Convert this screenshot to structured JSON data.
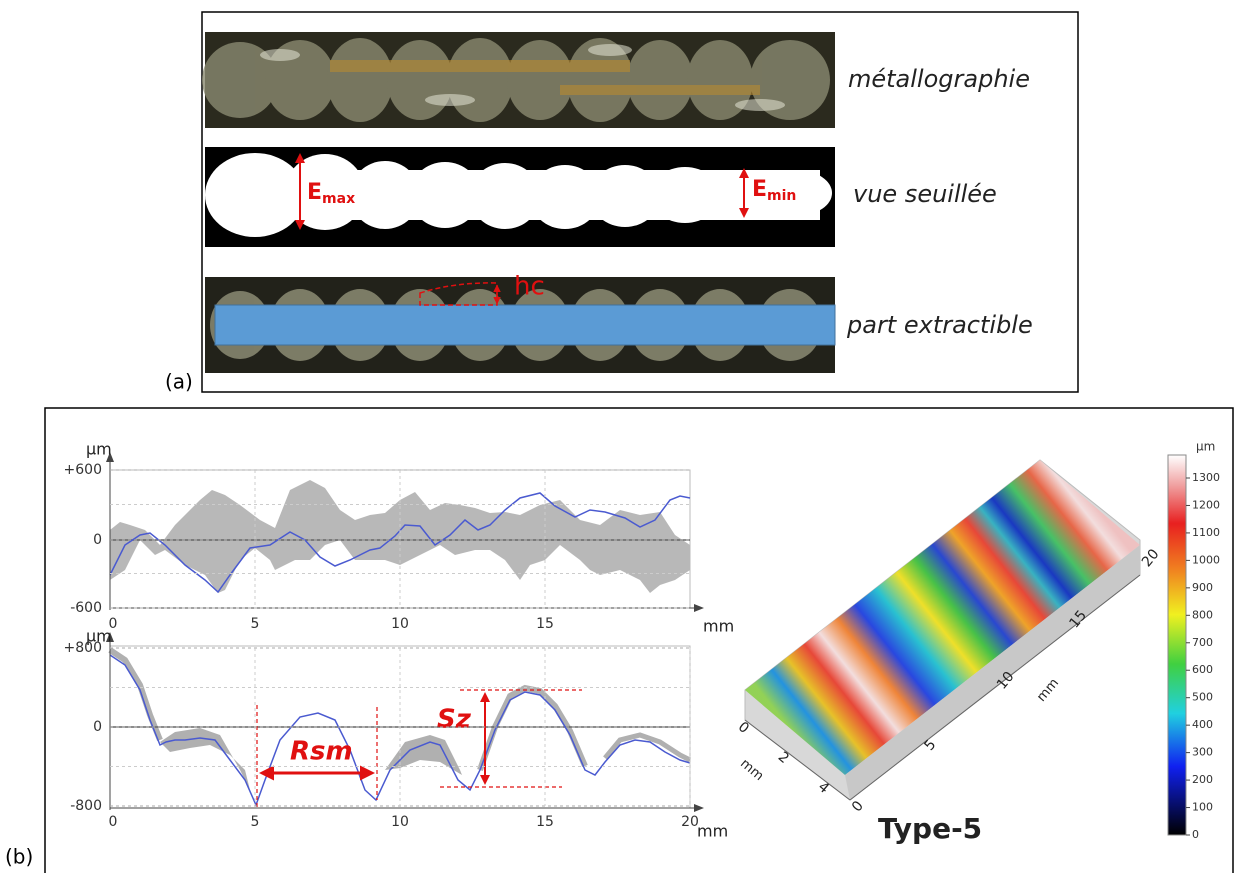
{
  "panel_a": {
    "label": "(a)",
    "rows": [
      {
        "caption": "métallographie"
      },
      {
        "caption": "vue seuillée",
        "marker_max": {
          "base": "E",
          "sub": "max"
        },
        "marker_min": {
          "base": "E",
          "sub": "min"
        }
      },
      {
        "caption": "part extractible",
        "marker": "hc"
      }
    ]
  },
  "panel_b": {
    "label": "(b)",
    "profile_top": {
      "y_unit": "µm",
      "yticks": [
        "+600",
        "0",
        "-600"
      ],
      "xticks": [
        "0",
        "5",
        "10",
        "15"
      ],
      "x_unit": "mm"
    },
    "profile_bottom": {
      "y_unit": "µm",
      "yticks": [
        "+800",
        "0",
        "-800"
      ],
      "xticks": [
        "0",
        "5",
        "10",
        "15",
        "20"
      ],
      "x_unit": "mm",
      "spacing_label": "Rsm",
      "height_label": "Sz"
    },
    "surface": {
      "title": "Type-5",
      "width_ticks": [
        "0",
        "2",
        "4"
      ],
      "width_unit": "mm",
      "length_ticks": [
        "0",
        "5",
        "10",
        "15",
        "20"
      ],
      "length_unit": "mm"
    },
    "colorbar": {
      "unit": "µm",
      "ticks": [
        "1300",
        "1200",
        "1100",
        "1000",
        "900",
        "800",
        "700",
        "600",
        "500",
        "400",
        "300",
        "200",
        "100",
        "0"
      ]
    }
  }
}
